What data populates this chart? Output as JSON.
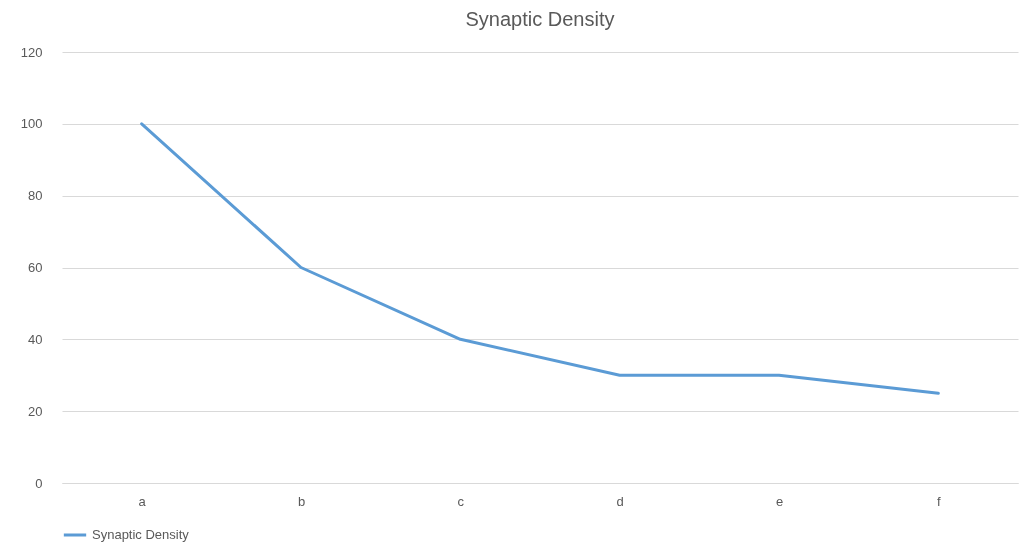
{
  "chart_data": {
    "type": "line",
    "title": "Synaptic Density",
    "categories": [
      "a",
      "b",
      "c",
      "d",
      "e",
      "f"
    ],
    "series": [
      {
        "name": "Synaptic Density",
        "color": "#5b9bd5",
        "values": [
          100,
          60,
          40,
          30,
          30,
          25
        ]
      }
    ],
    "ylim": [
      0,
      120
    ],
    "yticks": [
      0,
      20,
      40,
      60,
      80,
      100,
      120
    ],
    "grid": "y",
    "legend": "bottom",
    "marker": "none"
  }
}
